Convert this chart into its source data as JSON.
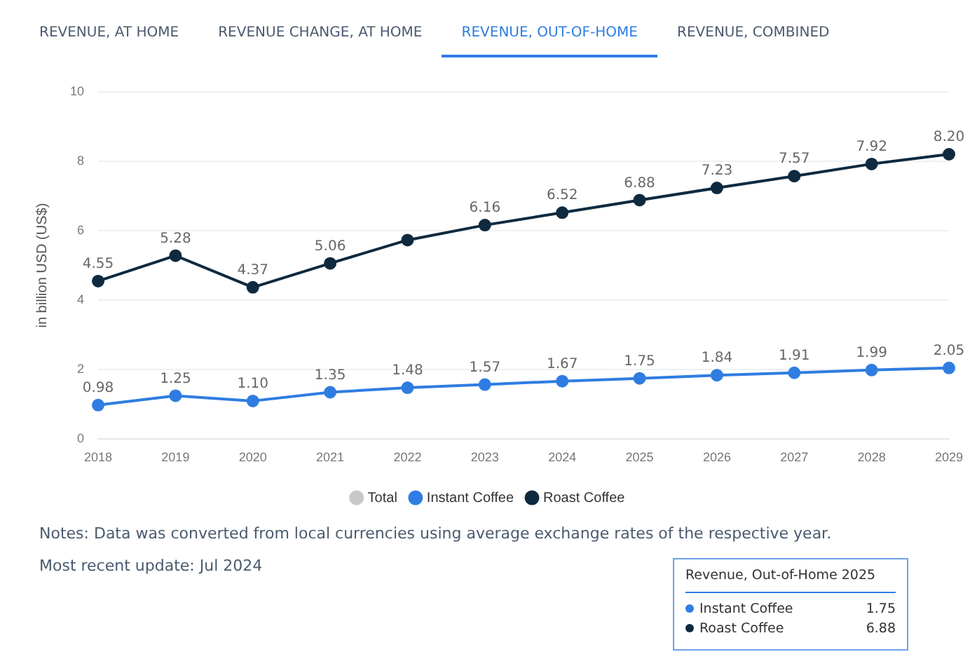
{
  "chart_data": {
    "type": "line",
    "ylabel": "in billion USD (US$)",
    "categories": [
      "2018",
      "2019",
      "2020",
      "2021",
      "2022",
      "2023",
      "2024",
      "2025",
      "2026",
      "2027",
      "2028",
      "2029"
    ],
    "series": [
      {
        "name": "Total",
        "color": "#c8c8c8",
        "values": [
          null,
          null,
          null,
          null,
          null,
          null,
          null,
          null,
          null,
          null,
          null,
          null
        ]
      },
      {
        "name": "Instant Coffee",
        "color": "#2f7de1",
        "values": [
          0.98,
          1.25,
          1.1,
          1.35,
          1.48,
          1.57,
          1.67,
          1.75,
          1.84,
          1.91,
          1.99,
          2.05
        ],
        "value_labels": [
          "0.98",
          "1.25",
          "1.10",
          "1.35",
          "1.48",
          "1.57",
          "1.67",
          "1.75",
          "1.84",
          "1.91",
          "1.99",
          "2.05"
        ]
      },
      {
        "name": "Roast Coffee",
        "color": "#0f2a3f",
        "values": [
          4.55,
          5.28,
          4.37,
          5.06,
          5.73,
          6.16,
          6.52,
          6.88,
          7.23,
          7.57,
          7.92,
          8.2
        ],
        "value_labels": [
          "4.55",
          "5.28",
          "4.37",
          "5.06",
          null,
          "6.16",
          "6.52",
          "6.88",
          "7.23",
          "7.57",
          "7.92",
          "8.20"
        ]
      }
    ],
    "ylim": [
      0,
      10
    ],
    "yticks": [
      0,
      2,
      4,
      6,
      8,
      10
    ],
    "grid": "y",
    "legend": "bottom",
    "marker": "circle",
    "line_style": "solid",
    "annotations": [
      "REVENUE, AT HOME",
      "REVENUE CHANGE, AT HOME",
      "REVENUE, OUT-OF-HOME",
      "REVENUE, COMBINED",
      "Revenue, Out-of-Home 2025",
      "Instant Coffee",
      "1.75",
      "Roast Coffee",
      "6.88",
      "Notes: Data was converted from local currencies using average exchange rates of the respective year.",
      "Most recent update: Jul 2024"
    ]
  }
}
